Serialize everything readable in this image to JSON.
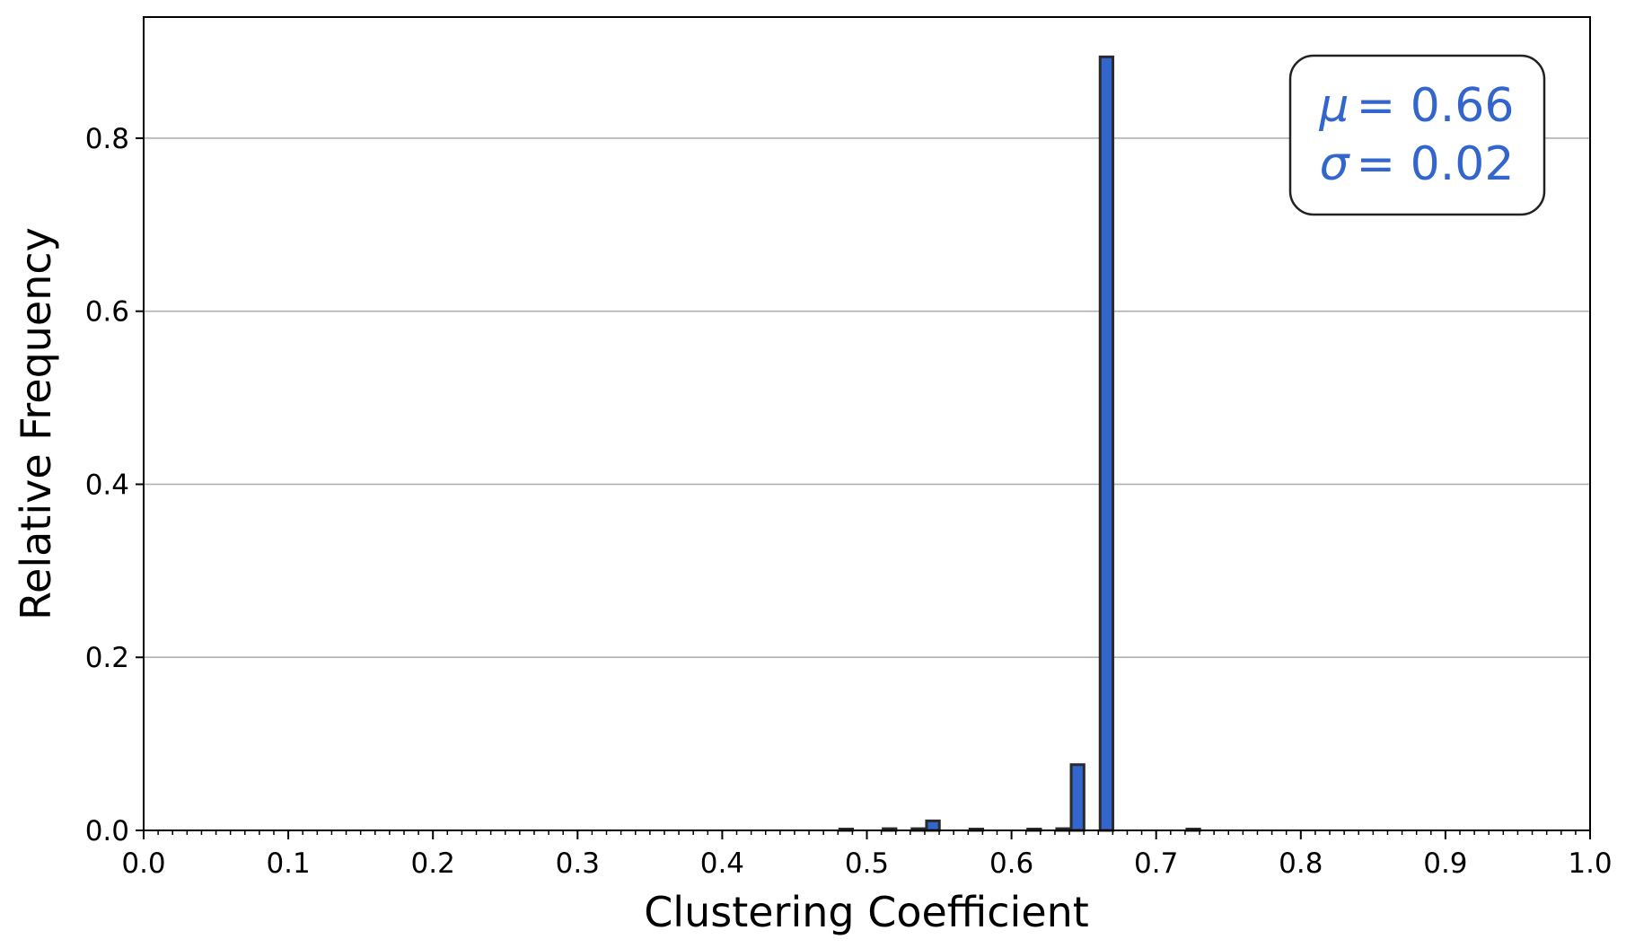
{
  "chart_data": {
    "type": "bar",
    "xlabel": "Clustering Coefficient",
    "ylabel": "Relative Frequency",
    "xlim": [
      0.0,
      1.0
    ],
    "ylim": [
      0.0,
      0.94
    ],
    "x_ticks": [
      "0.0",
      "0.1",
      "0.2",
      "0.3",
      "0.4",
      "0.5",
      "0.6",
      "0.7",
      "0.8",
      "0.9",
      "1.0"
    ],
    "y_ticks": [
      "0.0",
      "0.2",
      "0.4",
      "0.6",
      "0.8"
    ],
    "minor_x_step": 0.01,
    "grid": "horizontal",
    "bin_width": 0.01,
    "bar_color": "#3366cc",
    "edge_color": "#2b2b2b",
    "bins": [
      {
        "x": 0.485,
        "value": 0.0006
      },
      {
        "x": 0.515,
        "value": 0.002
      },
      {
        "x": 0.535,
        "value": 0.002
      },
      {
        "x": 0.545,
        "value": 0.011
      },
      {
        "x": 0.575,
        "value": 0.0007
      },
      {
        "x": 0.615,
        "value": 0.0007
      },
      {
        "x": 0.635,
        "value": 0.002
      },
      {
        "x": 0.645,
        "value": 0.076
      },
      {
        "x": 0.665,
        "value": 0.894
      },
      {
        "x": 0.725,
        "value": 0.0004
      }
    ],
    "annotation": {
      "mu_symbol": "μ",
      "mu_value": "= 0.66",
      "sigma_symbol": "σ",
      "sigma_value": "= 0.02",
      "color": "#3366cc",
      "placement": "top-right"
    }
  }
}
